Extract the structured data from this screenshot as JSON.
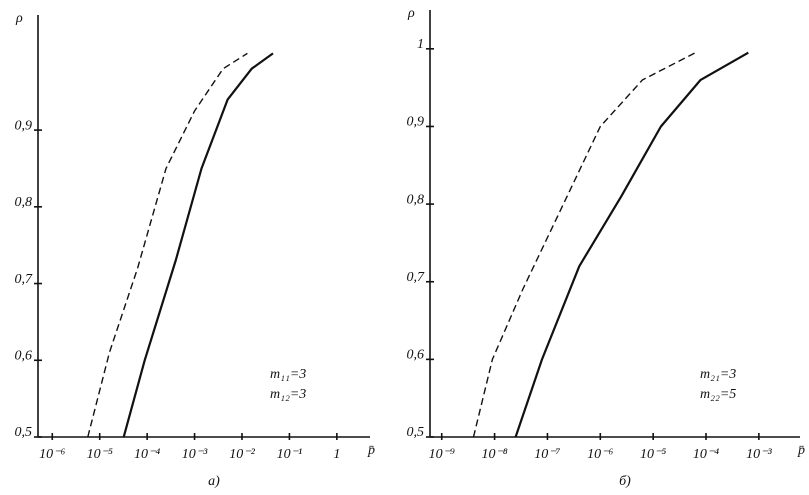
{
  "chart_data": [
    {
      "type": "line",
      "caption": "а)",
      "ylabel": "ρ",
      "xlabel": "p̄",
      "log_x": true,
      "xlim": [
        5e-07,
        5
      ],
      "ylim": [
        0.5,
        1.05
      ],
      "xticks": [
        {
          "value": 1e-06,
          "label": "10⁻⁶"
        },
        {
          "value": 1e-05,
          "label": "10⁻⁵"
        },
        {
          "value": 0.0001,
          "label": "10⁻⁴"
        },
        {
          "value": 0.001,
          "label": "10⁻³"
        },
        {
          "value": 0.01,
          "label": "10⁻²"
        },
        {
          "value": 0.1,
          "label": "10⁻¹"
        },
        1
      ],
      "yticks": [
        {
          "value": 0.5,
          "label": "0,5"
        },
        {
          "value": 0.6,
          "label": "0,6"
        },
        {
          "value": 0.7,
          "label": "0,7"
        },
        {
          "value": 0.8,
          "label": "0,8"
        },
        {
          "value": 0.9,
          "label": "0,9"
        }
      ],
      "annotations": [
        "m₁₁=3",
        "m₁₂=3"
      ],
      "series": [
        {
          "color": "#111111",
          "dashed": true,
          "x": [
            5.6e-06,
            1.6e-05,
            6.3e-05,
            0.00025,
            0.001,
            0.004,
            0.013
          ],
          "values": [
            0.5,
            0.61,
            0.72,
            0.85,
            0.925,
            0.98,
            1.0
          ]
        },
        {
          "color": "#111111",
          "dashed": false,
          "x": [
            3.2e-05,
            8.9e-05,
            0.0004,
            0.0014,
            0.005,
            0.016,
            0.045
          ],
          "values": [
            0.5,
            0.6,
            0.73,
            0.85,
            0.94,
            0.98,
            1.0
          ]
        }
      ]
    },
    {
      "type": "line",
      "caption": "б)",
      "ylabel": "ρ",
      "xlabel": "p̄",
      "log_x": true,
      "xlim": [
        6e-10,
        0.006
      ],
      "ylim": [
        0.5,
        1.05
      ],
      "xticks": [
        {
          "value": 1e-09,
          "label": "10⁻⁹"
        },
        {
          "value": 1e-08,
          "label": "10⁻⁸"
        },
        {
          "value": 1e-07,
          "label": "10⁻⁷"
        },
        {
          "value": 1e-06,
          "label": "10⁻⁶"
        },
        {
          "value": 1e-05,
          "label": "10⁻⁵"
        },
        {
          "value": 0.0001,
          "label": "10⁻⁴"
        },
        {
          "value": 0.001,
          "label": "10⁻³"
        }
      ],
      "yticks": [
        {
          "value": 0.5,
          "label": "0,5"
        },
        {
          "value": 0.6,
          "label": "0,6"
        },
        {
          "value": 0.7,
          "label": "0,7"
        },
        {
          "value": 0.8,
          "label": "0,8"
        },
        {
          "value": 0.9,
          "label": "0,9"
        },
        1
      ],
      "annotations": [
        "m₂₁=3",
        "m₂₂=5"
      ],
      "series": [
        {
          "color": "#111111",
          "dashed": true,
          "x": [
            4e-09,
            9.1e-09,
            3.4e-08,
            2e-07,
            1e-06,
            6.3e-06,
            6.3e-05
          ],
          "values": [
            0.5,
            0.6,
            0.69,
            0.8,
            0.9,
            0.96,
            0.995
          ]
        },
        {
          "color": "#111111",
          "dashed": false,
          "x": [
            2.5e-08,
            7.9e-08,
            4e-07,
            2.5e-06,
            1.4e-05,
            7.9e-05,
            0.00063
          ],
          "values": [
            0.5,
            0.6,
            0.72,
            0.81,
            0.9,
            0.96,
            0.995
          ]
        }
      ]
    }
  ]
}
